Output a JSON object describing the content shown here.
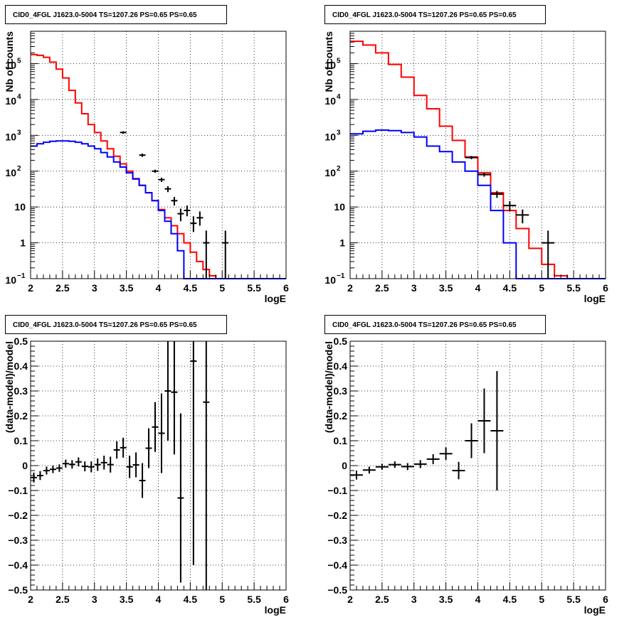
{
  "chart_data": [
    {
      "type": "histogram-log",
      "title": "CID0_4FGL J1623.0-5004 TS=1207.26 PS=0.65 PS=0.65",
      "xlabel": "logE",
      "ylabel": "Nb of counts",
      "xlim": [
        2,
        6
      ],
      "ylim": [
        0.1,
        800000
      ],
      "ylog": true,
      "grid": true,
      "xticks": [
        "2",
        "2.5",
        "3",
        "3.5",
        "4",
        "4.5",
        "5",
        "5.5",
        "6"
      ],
      "yticks": [
        {
          "v": 0.1,
          "m": "10",
          "e": "−1"
        },
        {
          "v": 1,
          "m": "1",
          "e": ""
        },
        {
          "v": 10,
          "m": "10",
          "e": ""
        },
        {
          "v": 100,
          "m": "10",
          "e": "2"
        },
        {
          "v": 1000,
          "m": "10",
          "e": "3"
        },
        {
          "v": 10000,
          "m": "10",
          "e": "4"
        },
        {
          "v": 100000,
          "m": "10",
          "e": "5"
        }
      ],
      "binEdgesStart": 2.0,
      "binWidth": 0.1,
      "series": [
        {
          "color": "#ff0000",
          "values": [
            180000,
            170000,
            150000,
            110000,
            70000,
            40000,
            18000,
            8000,
            4000,
            2000,
            1200,
            700,
            420,
            260,
            160,
            100,
            62,
            40,
            25,
            15,
            8.5,
            5,
            3,
            1.8,
            1,
            0.55,
            0.3,
            0.18,
            0.12,
            0.1,
            0.1,
            0.1,
            0.1,
            0.1,
            0.1,
            0.1,
            0.1,
            0.1,
            0.1,
            0.1
          ]
        },
        {
          "color": "#0000ff",
          "values": [
            500,
            580,
            640,
            680,
            700,
            700,
            680,
            640,
            580,
            500,
            420,
            330,
            250,
            180,
            130,
            90,
            60,
            40,
            25,
            15,
            8,
            4,
            1.8,
            0.6,
            0.1,
            0.1,
            0.1,
            0.1,
            0.1,
            0.1,
            0.1,
            0.1,
            0.1,
            0.1,
            0.1,
            0.1,
            0.1,
            0.1,
            0.1,
            0.1
          ]
        }
      ],
      "points": [
        {
          "x": 3.45,
          "y": 1200,
          "xe": 0.05,
          "ylo": 1100,
          "yhi": 1300
        },
        {
          "x": 3.75,
          "y": 280,
          "xe": 0.05,
          "ylo": 250,
          "yhi": 310
        },
        {
          "x": 3.95,
          "y": 100,
          "xe": 0.05,
          "ylo": 90,
          "yhi": 110
        },
        {
          "x": 4.05,
          "y": 58,
          "xe": 0.05,
          "ylo": 50,
          "yhi": 66
        },
        {
          "x": 4.15,
          "y": 32,
          "xe": 0.05,
          "ylo": 26,
          "yhi": 38
        },
        {
          "x": 4.25,
          "y": 15,
          "xe": 0.05,
          "ylo": 11,
          "yhi": 19
        },
        {
          "x": 4.35,
          "y": 6.5,
          "xe": 0.05,
          "ylo": 4,
          "yhi": 9
        },
        {
          "x": 4.45,
          "y": 8,
          "xe": 0.05,
          "ylo": 5.5,
          "yhi": 11
        },
        {
          "x": 4.55,
          "y": 3.5,
          "xe": 0.05,
          "ylo": 2,
          "yhi": 5.5
        },
        {
          "x": 4.65,
          "y": 5,
          "xe": 0.05,
          "ylo": 3,
          "yhi": 7.5
        },
        {
          "x": 4.75,
          "y": 1,
          "xe": 0.05,
          "ylo": 0.1,
          "yhi": 2.2
        },
        {
          "x": 5.05,
          "y": 1,
          "xe": 0.05,
          "ylo": 0.1,
          "yhi": 2.2
        }
      ]
    },
    {
      "type": "histogram-log",
      "title": "CID0_4FGL J1623.0-5004 TS=1207.26 PS=0.65 PS=0.65",
      "xlabel": "logE",
      "ylabel": "Nb of counts",
      "xlim": [
        2,
        6
      ],
      "ylim": [
        0.1,
        800000
      ],
      "ylog": true,
      "grid": true,
      "xticks": [
        "2",
        "2.5",
        "3",
        "3.5",
        "4",
        "4.5",
        "5",
        "5.5",
        "6"
      ],
      "yticks": [
        {
          "v": 0.1,
          "m": "10",
          "e": "−1"
        },
        {
          "v": 1,
          "m": "1",
          "e": ""
        },
        {
          "v": 10,
          "m": "10",
          "e": ""
        },
        {
          "v": 100,
          "m": "10",
          "e": "2"
        },
        {
          "v": 1000,
          "m": "10",
          "e": "3"
        },
        {
          "v": 10000,
          "m": "10",
          "e": "4"
        },
        {
          "v": 100000,
          "m": "10",
          "e": "5"
        }
      ],
      "binEdgesStart": 2.0,
      "binWidth": 0.2,
      "series": [
        {
          "color": "#ff0000",
          "values": [
            420000,
            330000,
            200000,
            95000,
            42000,
            13000,
            5500,
            1800,
            720,
            250,
            90,
            25,
            8,
            2.5,
            0.7,
            0.25,
            0.12,
            0.1,
            0.1,
            0.1
          ]
        },
        {
          "color": "#0000ff",
          "values": [
            1100,
            1300,
            1400,
            1350,
            1200,
            900,
            500,
            350,
            180,
            100,
            40,
            8,
            1,
            0.1,
            0.1,
            0.1,
            0.1,
            0.1,
            0.1,
            0.1
          ]
        }
      ],
      "points": [
        {
          "x": 3.9,
          "y": 240,
          "xe": 0.1,
          "ylo": 215,
          "yhi": 265
        },
        {
          "x": 4.1,
          "y": 80,
          "xe": 0.1,
          "ylo": 70,
          "yhi": 90
        },
        {
          "x": 4.3,
          "y": 23,
          "xe": 0.1,
          "ylo": 18,
          "yhi": 28
        },
        {
          "x": 4.5,
          "y": 11,
          "xe": 0.1,
          "ylo": 7.5,
          "yhi": 14.5
        },
        {
          "x": 4.7,
          "y": 6,
          "xe": 0.1,
          "ylo": 3.5,
          "yhi": 8.5
        },
        {
          "x": 5.1,
          "y": 1,
          "xe": 0.1,
          "ylo": 0.1,
          "yhi": 2.2
        }
      ]
    },
    {
      "type": "scatter",
      "title": "CID0_4FGL J1623.0-5004 TS=1207.26 PS=0.65 PS=0.65",
      "xlabel": "logE",
      "ylabel": "(data-model)/model",
      "xlim": [
        2,
        6
      ],
      "ylim": [
        -0.5,
        0.5
      ],
      "grid": true,
      "xticks": [
        "2",
        "2.5",
        "3",
        "3.5",
        "4",
        "4.5",
        "5",
        "5.5",
        "6"
      ],
      "yticks": [
        "−0.5",
        "−0.4",
        "−0.3",
        "−0.2",
        "−0.1",
        "0",
        "0.1",
        "0.2",
        "0.3",
        "0.4",
        "0.5"
      ],
      "points": [
        {
          "x": 2.05,
          "y": -0.048,
          "xe": 0.05,
          "ye": 0.02
        },
        {
          "x": 2.15,
          "y": -0.04,
          "xe": 0.05,
          "ye": 0.018
        },
        {
          "x": 2.25,
          "y": -0.02,
          "xe": 0.05,
          "ye": 0.016
        },
        {
          "x": 2.35,
          "y": -0.015,
          "xe": 0.05,
          "ye": 0.015
        },
        {
          "x": 2.45,
          "y": -0.01,
          "xe": 0.05,
          "ye": 0.015
        },
        {
          "x": 2.55,
          "y": 0.008,
          "xe": 0.05,
          "ye": 0.016
        },
        {
          "x": 2.65,
          "y": 0.005,
          "xe": 0.05,
          "ye": 0.017
        },
        {
          "x": 2.75,
          "y": 0.015,
          "xe": 0.05,
          "ye": 0.018
        },
        {
          "x": 2.85,
          "y": -0.003,
          "xe": 0.05,
          "ye": 0.02
        },
        {
          "x": 2.95,
          "y": -0.005,
          "xe": 0.05,
          "ye": 0.022
        },
        {
          "x": 3.05,
          "y": 0.004,
          "xe": 0.05,
          "ye": 0.025
        },
        {
          "x": 3.15,
          "y": 0.012,
          "xe": 0.05,
          "ye": 0.028
        },
        {
          "x": 3.25,
          "y": 0.004,
          "xe": 0.05,
          "ye": 0.032
        },
        {
          "x": 3.35,
          "y": 0.063,
          "xe": 0.05,
          "ye": 0.035
        },
        {
          "x": 3.45,
          "y": 0.072,
          "xe": 0.05,
          "ye": 0.04
        },
        {
          "x": 3.55,
          "y": -0.005,
          "xe": 0.05,
          "ye": 0.045
        },
        {
          "x": 3.65,
          "y": 0.003,
          "xe": 0.05,
          "ye": 0.05
        },
        {
          "x": 3.75,
          "y": -0.06,
          "xe": 0.05,
          "ye": 0.07
        },
        {
          "x": 3.85,
          "y": 0.07,
          "xe": 0.05,
          "ye": 0.08
        },
        {
          "x": 3.95,
          "y": 0.155,
          "xe": 0.05,
          "ye": 0.1
        },
        {
          "x": 4.05,
          "y": 0.13,
          "xe": 0.05,
          "ye": 0.16
        },
        {
          "x": 4.15,
          "y": 0.3,
          "xe": 0.05,
          "ye": 0.2
        },
        {
          "x": 4.25,
          "y": 0.295,
          "xe": 0.05,
          "ye": 0.25
        },
        {
          "x": 4.35,
          "y": -0.13,
          "xe": 0.05,
          "ye": 0.34
        },
        {
          "x": 4.55,
          "y": 0.42,
          "xe": 0.05,
          "ye": 0.82
        },
        {
          "x": 4.75,
          "y": 0.255,
          "xe": 0.05,
          "ye": 0.9
        }
      ]
    },
    {
      "type": "scatter",
      "title": "CID0_4FGL J1623.0-5004 TS=1207.26 PS=0.65 PS=0.65",
      "xlabel": "logE",
      "ylabel": "(data-model)/model",
      "xlim": [
        2,
        6
      ],
      "ylim": [
        -0.5,
        0.5
      ],
      "grid": true,
      "xticks": [
        "2",
        "2.5",
        "3",
        "3.5",
        "4",
        "4.5",
        "5",
        "5.5",
        "6"
      ],
      "yticks": [
        "−0.5",
        "−0.4",
        "−0.3",
        "−0.2",
        "−0.1",
        "0",
        "0.1",
        "0.2",
        "0.3",
        "0.4",
        "0.5"
      ],
      "points": [
        {
          "x": 2.1,
          "y": -0.038,
          "xe": 0.1,
          "ye": 0.018
        },
        {
          "x": 2.3,
          "y": -0.018,
          "xe": 0.1,
          "ye": 0.014
        },
        {
          "x": 2.5,
          "y": -0.005,
          "xe": 0.1,
          "ye": 0.012
        },
        {
          "x": 2.7,
          "y": 0.004,
          "xe": 0.1,
          "ye": 0.013
        },
        {
          "x": 2.9,
          "y": -0.004,
          "xe": 0.1,
          "ye": 0.014
        },
        {
          "x": 3.1,
          "y": 0.006,
          "xe": 0.1,
          "ye": 0.016
        },
        {
          "x": 3.3,
          "y": 0.026,
          "xe": 0.1,
          "ye": 0.02
        },
        {
          "x": 3.5,
          "y": 0.048,
          "xe": 0.1,
          "ye": 0.025
        },
        {
          "x": 3.7,
          "y": -0.02,
          "xe": 0.1,
          "ye": 0.035
        },
        {
          "x": 3.9,
          "y": 0.1,
          "xe": 0.1,
          "ye": 0.07
        },
        {
          "x": 4.1,
          "y": 0.18,
          "xe": 0.1,
          "ye": 0.13
        },
        {
          "x": 4.3,
          "y": 0.14,
          "xe": 0.1,
          "ye": 0.24
        }
      ]
    }
  ]
}
